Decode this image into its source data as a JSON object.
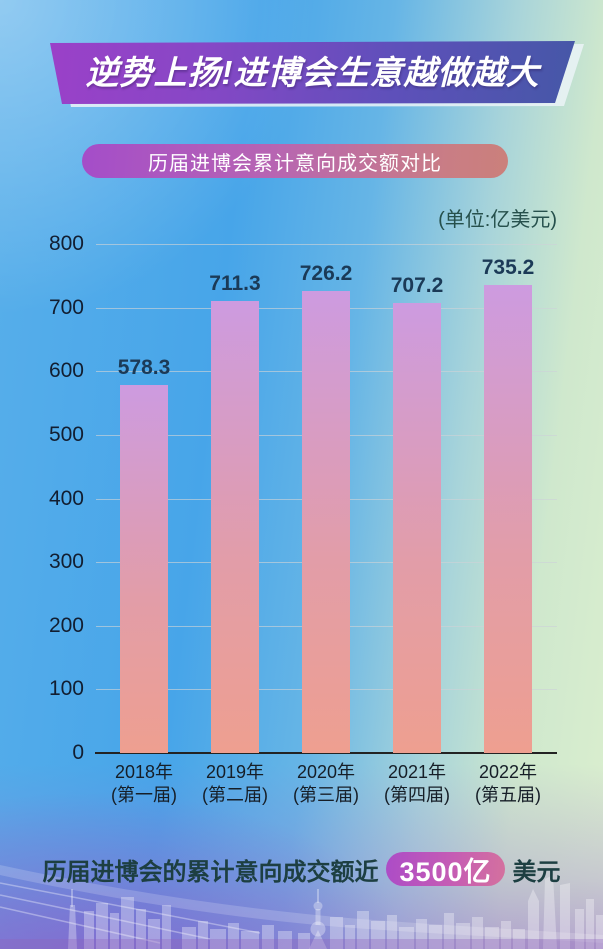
{
  "banner": {
    "title": "逆势上扬!进博会生意越做越大"
  },
  "subtitle": {
    "label": "历届进博会累计意向成交额对比"
  },
  "chart_data": {
    "type": "bar",
    "title": "历届进博会累计意向成交额对比",
    "unit_label": "(单位:亿美元)",
    "categories": [
      "2018年",
      "2019年",
      "2020年",
      "2021年",
      "2022年"
    ],
    "category_sublabels": [
      "(第一届)",
      "(第二届)",
      "(第三届)",
      "(第四届)",
      "(第五届)"
    ],
    "values": [
      578.3,
      711.3,
      726.2,
      707.2,
      735.2
    ],
    "ylim": [
      0,
      800
    ],
    "ytick_step": 100,
    "grid": true,
    "legend": false,
    "bar_gradient_top": "#cd9be0",
    "bar_gradient_mid": "#e29da8",
    "bar_gradient_bottom": "#ee9f90"
  },
  "footer": {
    "prefix": "历届进博会的累计意向成交额近",
    "highlight": "3500亿",
    "suffix": "美元"
  },
  "colors": {
    "banner_gradient_left": "#9c40c8",
    "banner_gradient_right": "#4458a6",
    "subtitle_gradient_left": "#a44dc9",
    "subtitle_gradient_right": "#cb807b",
    "highlight_pill_left": "#ac4cc7",
    "highlight_pill_right": "#d4719e",
    "background_blue": "#47a5e9",
    "background_green": "#dbefcf",
    "background_purple": "#9a6ecd",
    "value_label_color": "#1b3a57",
    "axis_color": "#232323"
  }
}
